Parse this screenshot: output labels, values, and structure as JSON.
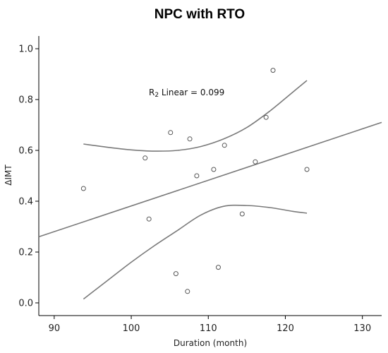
{
  "chart_data": {
    "type": "scatter",
    "title": "NPC with RTO",
    "xlabel": "Duration (month)",
    "ylabel": "ΔIMT",
    "xlim": [
      88,
      132.5
    ],
    "ylim": [
      -0.05,
      1.05
    ],
    "xticks": [
      90,
      100,
      110,
      120,
      130
    ],
    "yticks": [
      0.0,
      0.2,
      0.4,
      0.6,
      0.8,
      1.0
    ],
    "xtick_labels": [
      "90",
      "100",
      "110",
      "120",
      "130"
    ],
    "ytick_labels": [
      "0.0",
      "0.2",
      "0.4",
      "0.6",
      "0.8",
      "1.0"
    ],
    "annotation": {
      "prefix": "R",
      "subscript": "2",
      "text": " Linear = 0.099"
    },
    "grid": false,
    "points": [
      {
        "x": 93.8,
        "y": 0.45
      },
      {
        "x": 101.8,
        "y": 0.57
      },
      {
        "x": 102.3,
        "y": 0.33
      },
      {
        "x": 105.1,
        "y": 0.67
      },
      {
        "x": 105.8,
        "y": 0.115
      },
      {
        "x": 107.3,
        "y": 0.045
      },
      {
        "x": 107.6,
        "y": 0.645
      },
      {
        "x": 108.5,
        "y": 0.5
      },
      {
        "x": 110.7,
        "y": 0.525
      },
      {
        "x": 111.3,
        "y": 0.14
      },
      {
        "x": 112.1,
        "y": 0.62
      },
      {
        "x": 114.4,
        "y": 0.35
      },
      {
        "x": 116.1,
        "y": 0.555
      },
      {
        "x": 117.5,
        "y": 0.73
      },
      {
        "x": 118.4,
        "y": 0.915
      },
      {
        "x": 122.8,
        "y": 0.525
      }
    ],
    "fit_line": {
      "x": [
        88,
        132.5
      ],
      "y": [
        0.26,
        0.71
      ]
    },
    "ci_upper": {
      "x": [
        93.8,
        97,
        100,
        103,
        106,
        109,
        112,
        115,
        118,
        121,
        122.8
      ],
      "y": [
        0.625,
        0.612,
        0.602,
        0.597,
        0.6,
        0.615,
        0.645,
        0.69,
        0.755,
        0.83,
        0.875
      ]
    },
    "ci_lower": {
      "x": [
        93.8,
        97,
        100,
        103,
        106,
        109,
        112,
        115,
        118,
        121,
        122.8
      ],
      "y": [
        0.015,
        0.09,
        0.16,
        0.225,
        0.285,
        0.345,
        0.38,
        0.383,
        0.375,
        0.36,
        0.353
      ]
    }
  }
}
